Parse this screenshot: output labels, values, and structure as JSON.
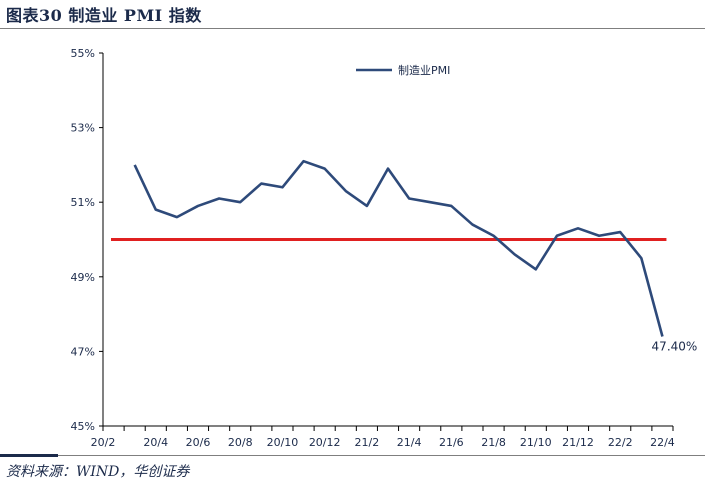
{
  "figure": {
    "title": "图表30 制造业 PMI 指数",
    "source": "资料来源：WIND，华创证券"
  },
  "chart_data": {
    "type": "line",
    "title": "图表30 制造业 PMI 指数",
    "xlabel": "",
    "ylabel": "",
    "x": [
      "20/2",
      "20/3",
      "20/4",
      "20/5",
      "20/6",
      "20/7",
      "20/8",
      "20/9",
      "20/10",
      "20/11",
      "20/12",
      "21/1",
      "21/2",
      "21/3",
      "21/4",
      "21/5",
      "21/6",
      "21/7",
      "21/8",
      "21/9",
      "21/10",
      "21/11",
      "21/12",
      "22/1",
      "22/2",
      "22/3",
      "22/4"
    ],
    "x_tick_labels": [
      "20/2",
      "20/4",
      "20/6",
      "20/8",
      "20/10",
      "20/12",
      "21/2",
      "21/4",
      "21/6",
      "21/8",
      "21/10",
      "21/12",
      "22/2",
      "22/4"
    ],
    "series": [
      {
        "name": "制造业PMI",
        "color": "#2e4a7a",
        "values": [
          null,
          52.0,
          50.8,
          50.6,
          50.9,
          51.1,
          51.0,
          51.5,
          51.4,
          52.1,
          51.9,
          51.3,
          50.9,
          51.9,
          51.1,
          51.0,
          50.9,
          50.4,
          50.1,
          49.6,
          49.2,
          50.1,
          50.3,
          50.1,
          50.2,
          49.5,
          47.4
        ]
      }
    ],
    "reference_line": {
      "value": 50,
      "color": "#e02020"
    },
    "ylim": [
      45,
      55
    ],
    "y_ticks": [
      45,
      47,
      49,
      51,
      53,
      55
    ],
    "y_tick_labels": [
      "45%",
      "47%",
      "49%",
      "51%",
      "53%",
      "55%"
    ],
    "annotation": {
      "x": "22/4",
      "text": "47.40%"
    },
    "legend_position": "top-center",
    "grid": false
  }
}
